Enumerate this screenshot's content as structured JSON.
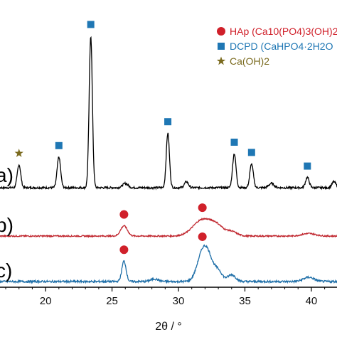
{
  "chart_data": {
    "type": "line",
    "xlabel": "2θ / °",
    "xlim": [
      15.5,
      43
    ],
    "x_ticks": [
      20,
      25,
      30,
      35,
      40
    ],
    "colors": {
      "hap": "#d0202a",
      "dcpd": "#1f77b4",
      "caoh2": "#7a6a1e",
      "trace_a": "#000000",
      "trace_b": "#c0262e",
      "trace_c": "#1f6fa8"
    },
    "legend": [
      {
        "marker": "circle",
        "color": "#d0202a",
        "text": "HAp (Ca10(PO4)3(OH)2"
      },
      {
        "marker": "square",
        "color": "#1f77b4",
        "text": "DCPD (CaHPO4·2H2O"
      },
      {
        "marker": "star",
        "color": "#7a6a1e",
        "text": "Ca(OH)2"
      }
    ],
    "series": [
      {
        "label": "a)",
        "baseline": 0,
        "offset": 2.15,
        "noise": 0.012,
        "peaks": [
          {
            "x": 18.0,
            "h": 0.27,
            "w": 0.13
          },
          {
            "x": 21.0,
            "h": 0.36,
            "w": 0.13
          },
          {
            "x": 23.4,
            "h": 1.78,
            "w": 0.12
          },
          {
            "x": 26.0,
            "h": 0.05,
            "w": 0.2
          },
          {
            "x": 29.2,
            "h": 0.64,
            "w": 0.12
          },
          {
            "x": 30.6,
            "h": 0.07,
            "w": 0.15
          },
          {
            "x": 34.2,
            "h": 0.4,
            "w": 0.13
          },
          {
            "x": 35.5,
            "h": 0.28,
            "w": 0.13
          },
          {
            "x": 37.0,
            "h": 0.05,
            "w": 0.2
          },
          {
            "x": 39.7,
            "h": 0.12,
            "w": 0.14
          },
          {
            "x": 41.7,
            "h": 0.07,
            "w": 0.15
          }
        ],
        "markers": [
          {
            "x": 18.0,
            "type": "star"
          },
          {
            "x": 21.0,
            "type": "square"
          },
          {
            "x": 23.4,
            "type": "square"
          },
          {
            "x": 29.2,
            "type": "square"
          },
          {
            "x": 34.2,
            "type": "square"
          },
          {
            "x": 35.5,
            "type": "square"
          },
          {
            "x": 39.7,
            "type": "square"
          }
        ]
      },
      {
        "label": "b)",
        "offset": 1.0,
        "noise": 0.008,
        "peaks": [
          {
            "x": 25.9,
            "h": 0.12,
            "w": 0.25
          },
          {
            "x": 31.8,
            "h": 0.19,
            "w": 0.7
          },
          {
            "x": 32.9,
            "h": 0.1,
            "w": 0.5
          },
          {
            "x": 34.0,
            "h": 0.05,
            "w": 0.4
          },
          {
            "x": 39.8,
            "h": 0.03,
            "w": 0.5
          }
        ],
        "markers": [
          {
            "x": 25.9,
            "type": "circle"
          },
          {
            "x": 31.8,
            "type": "circle"
          }
        ]
      },
      {
        "label": "c)",
        "offset": 0.0,
        "noise": 0.012,
        "peaks": [
          {
            "x": 25.9,
            "h": 0.24,
            "w": 0.16
          },
          {
            "x": 31.8,
            "h": 0.32,
            "w": 0.4
          },
          {
            "x": 32.3,
            "h": 0.2,
            "w": 0.35
          },
          {
            "x": 33.0,
            "h": 0.12,
            "w": 0.3
          },
          {
            "x": 34.0,
            "h": 0.08,
            "w": 0.3
          },
          {
            "x": 28.2,
            "h": 0.03,
            "w": 0.3
          },
          {
            "x": 39.8,
            "h": 0.05,
            "w": 0.4
          }
        ],
        "markers": [
          {
            "x": 25.9,
            "type": "circle"
          },
          {
            "x": 31.8,
            "type": "circle"
          }
        ]
      }
    ]
  }
}
